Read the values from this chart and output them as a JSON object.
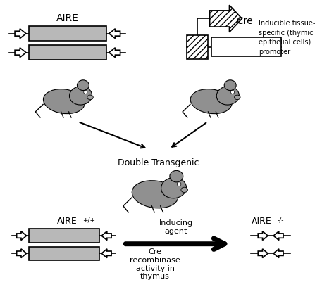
{
  "background_color": "#ffffff",
  "line_color": "#000000",
  "gray_fill": "#b8b8b8",
  "labels": {
    "aire_top": "AIRE",
    "cre_top": "Cre",
    "inducible_line1": "Inducible tissue-",
    "inducible_line2": "specific (thymic",
    "inducible_line3": "epithelial cells)",
    "inducible_line4": "promoter",
    "double_transgenic": "Double Transgenic",
    "aire_plus": "AIRE",
    "aire_plus_super": "+/+",
    "aire_minus": "AIRE",
    "aire_minus_super": "-/-",
    "inducing_agent": "Inducing\nagent",
    "cre_recombinase": "Cre\nrecombinase\nactivity in\nthymus"
  },
  "figsize": [
    4.74,
    4.08
  ],
  "dpi": 100
}
